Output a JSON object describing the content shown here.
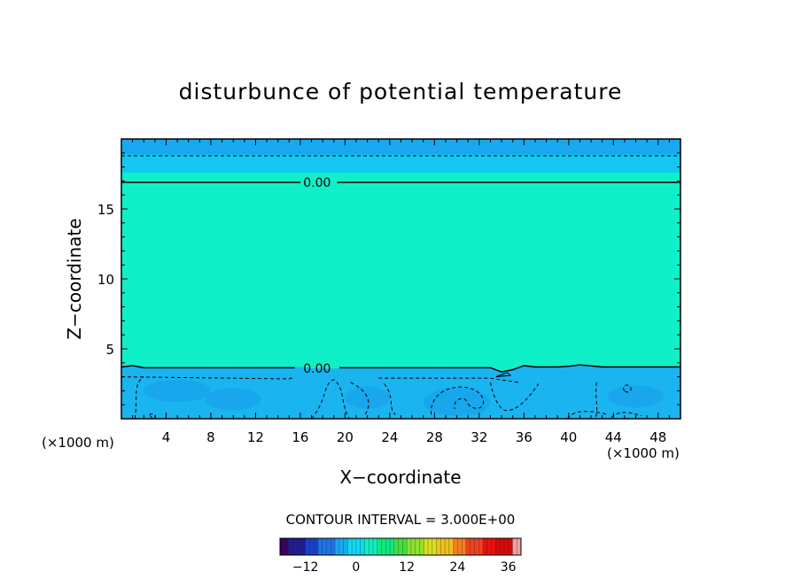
{
  "chart_data": {
    "type": "heatmap",
    "title": "disturbunce of potential temperature",
    "xlabel": "X−coordinate",
    "ylabel": "Z−coordinate",
    "x_unit_left": "(×1000 m)",
    "x_unit_right": "(×1000 m)",
    "xlim": [
      0,
      50
    ],
    "ylim": [
      0,
      20
    ],
    "x_ticks": [
      4,
      8,
      12,
      16,
      20,
      24,
      28,
      32,
      36,
      40,
      44,
      48
    ],
    "y_ticks": [
      5,
      10,
      15
    ],
    "contour_labels": [
      {
        "text": "0.00",
        "x": 17.5,
        "z": 16.9
      },
      {
        "text": "0.00",
        "x": 17.5,
        "z": 3.6
      }
    ],
    "contour_interval_text": "CONTOUR INTERVAL = 3.000E+00",
    "colorbar": {
      "ticks": [
        -12,
        0,
        12,
        24,
        36
      ],
      "range": [
        -18,
        39
      ],
      "colors": [
        "#3a0060",
        "#1e1e90",
        "#1a40c8",
        "#1a74e8",
        "#1aa8f0",
        "#12d8f0",
        "#10f0c0",
        "#10e880",
        "#40e040",
        "#90e030",
        "#d8e020",
        "#f0c020",
        "#f08020",
        "#f04020",
        "#e81010",
        "#d80808",
        "#f0a0a0"
      ]
    },
    "field_colors": {
      "upper_layer": "#10f0c8",
      "stratosphere": "#13c8f0",
      "top_band": "#18a8f0",
      "lower_layer": "#1ab4f0",
      "cool_patch": "#1890e8"
    }
  }
}
